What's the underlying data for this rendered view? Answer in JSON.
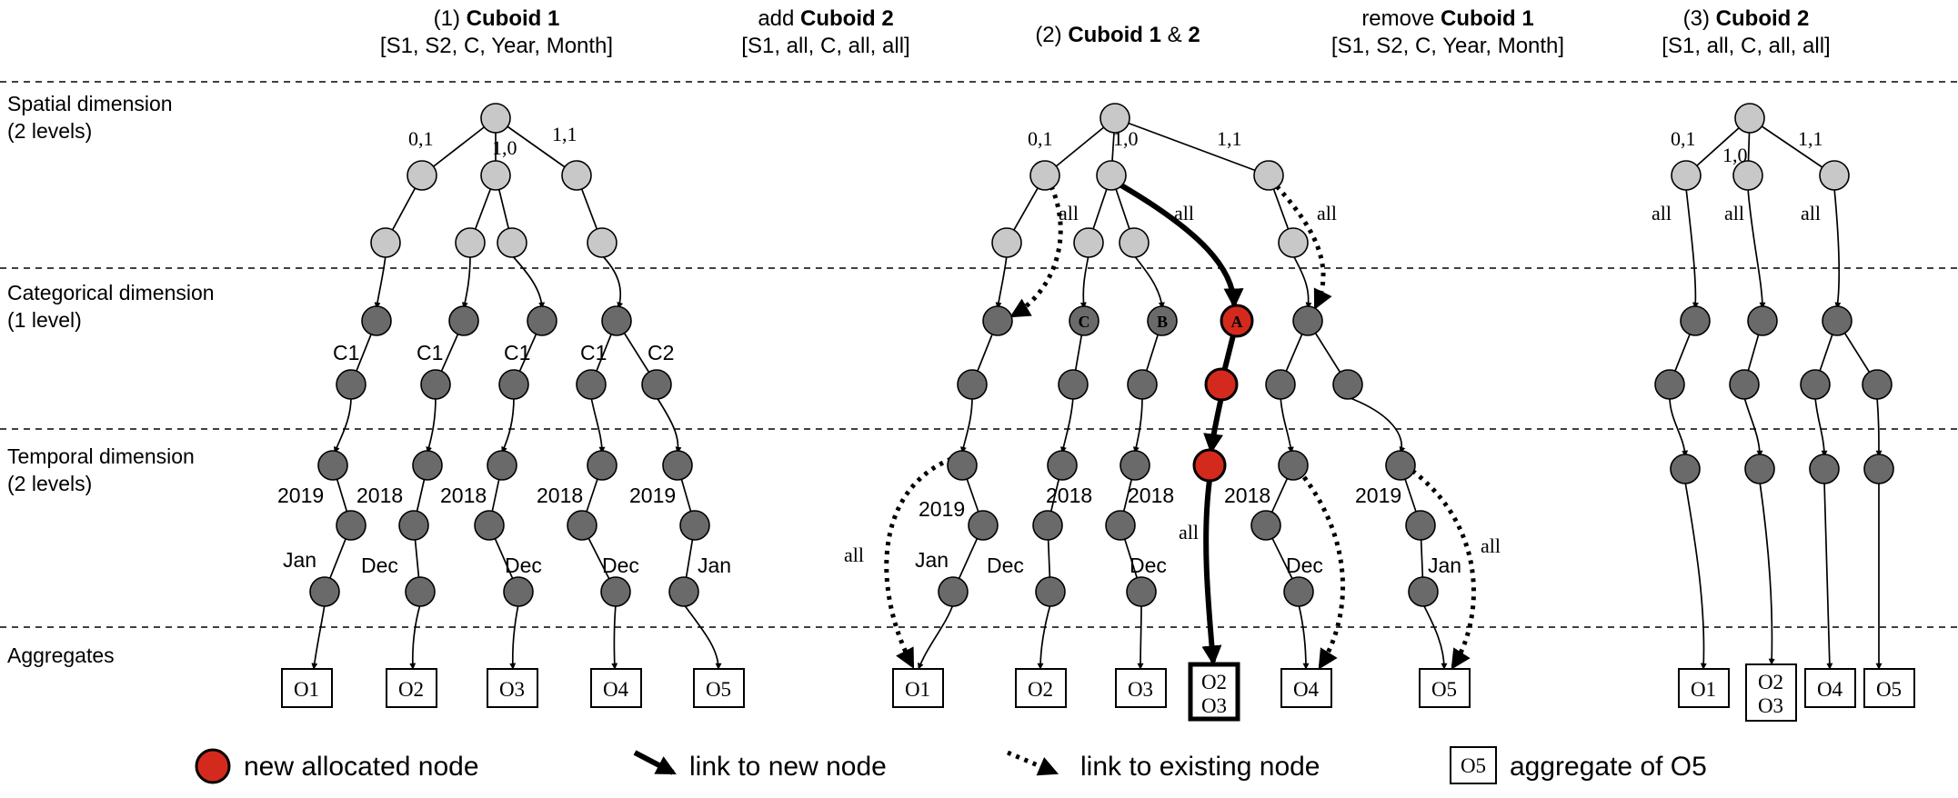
{
  "headers": {
    "step1": {
      "prefix": "(1) ",
      "name": "Cuboid 1",
      "dims": "[S1, S2, C, Year, Month]"
    },
    "add": {
      "prefix": "add ",
      "name": "Cuboid 2",
      "dims": "[S1, all, C, all, all]"
    },
    "step2": {
      "prefix": "(2) ",
      "name1": "Cuboid 1",
      "amp": " & ",
      "name2": "2"
    },
    "remove": {
      "prefix": "remove ",
      "name": "Cuboid 1",
      "dims": "[S1, S2, C, Year, Month]"
    },
    "step3": {
      "prefix": "(3) ",
      "name": "Cuboid 2",
      "dims": "[S1, all, C, all, all]"
    }
  },
  "bands": {
    "spatial": {
      "line1": "Spatial dimension",
      "line2": "(2 levels)"
    },
    "categorical": {
      "line1": "Categorical dimension",
      "line2": "(1 level)"
    },
    "temporal": {
      "line1": "Temporal dimension",
      "line2": "(2 levels)"
    },
    "aggregates": {
      "line1": "Aggregates"
    }
  },
  "labels": {
    "p01": "0,1",
    "p10": "1,0",
    "p11": "1,1",
    "c1": "C1",
    "c2": "C2",
    "y2019": "2019",
    "y2018": "2018",
    "jan": "Jan",
    "dec": "Dec",
    "all": "all",
    "node_a": "A",
    "node_b": "B",
    "node_c": "C"
  },
  "aggregates": {
    "o1": "O1",
    "o2": "O2",
    "o3": "O3",
    "o4": "O4",
    "o5": "O5"
  },
  "legend": {
    "new_node": "new allocated node",
    "link_new": "link to new node",
    "link_existing": "link to existing node",
    "agg_box": "O5",
    "agg_text": "aggregate of O5"
  },
  "colors": {
    "new_node": "#d42a1d",
    "spatial_node": "#c8c8c8",
    "dark_node": "#6a6a6a"
  }
}
